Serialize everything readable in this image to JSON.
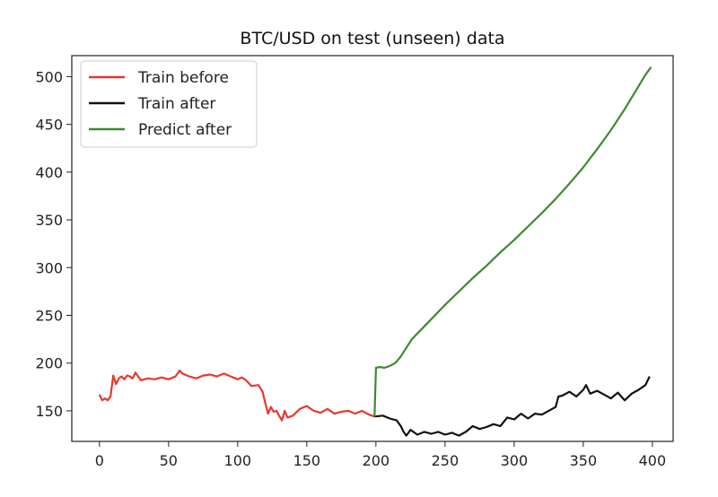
{
  "chart_data": {
    "type": "line",
    "title": "BTC/USD on test (unseen) data",
    "xlabel": "",
    "ylabel": "",
    "xlim": [
      -20,
      415
    ],
    "ylim": [
      118,
      522
    ],
    "xticks": [
      0,
      50,
      100,
      150,
      200,
      250,
      300,
      350,
      400
    ],
    "yticks": [
      150,
      200,
      250,
      300,
      350,
      400,
      450,
      500
    ],
    "grid": false,
    "legend_position": "top-left",
    "series": [
      {
        "name": "Train before",
        "color": "#e8382d",
        "x": [
          0,
          2,
          4,
          6,
          8,
          10,
          12,
          14,
          16,
          18,
          20,
          22,
          24,
          26,
          28,
          30,
          35,
          40,
          45,
          50,
          55,
          58,
          60,
          65,
          70,
          75,
          80,
          85,
          90,
          95,
          100,
          103,
          106,
          110,
          115,
          118,
          120,
          122,
          124,
          126,
          128,
          130,
          132,
          134,
          136,
          140,
          145,
          150,
          155,
          160,
          165,
          170,
          175,
          180,
          185,
          190,
          195,
          199
        ],
        "y": [
          167,
          161,
          163,
          161,
          165,
          187,
          178,
          184,
          186,
          183,
          187,
          186,
          184,
          190,
          186,
          182,
          184,
          183,
          185,
          183,
          186,
          192,
          189,
          186,
          184,
          187,
          188,
          186,
          189,
          186,
          183,
          185,
          182,
          176,
          177,
          170,
          158,
          147,
          154,
          149,
          150,
          145,
          140,
          150,
          143,
          145,
          152,
          155,
          150,
          148,
          152,
          147,
          149,
          150,
          147,
          150,
          146,
          144
        ]
      },
      {
        "name": "Train after",
        "color": "#111111",
        "x": [
          199,
          205,
          210,
          215,
          218,
          220,
          222,
          225,
          230,
          235,
          240,
          245,
          250,
          255,
          260,
          265,
          270,
          275,
          280,
          285,
          290,
          295,
          300,
          305,
          310,
          315,
          320,
          325,
          330,
          332,
          335,
          340,
          345,
          350,
          352,
          355,
          360,
          365,
          370,
          375,
          380,
          385,
          390,
          395,
          398
        ],
        "y": [
          144,
          145,
          142,
          140,
          134,
          128,
          124,
          130,
          125,
          128,
          126,
          128,
          125,
          127,
          124,
          128,
          134,
          131,
          133,
          136,
          134,
          143,
          141,
          147,
          142,
          147,
          146,
          150,
          154,
          165,
          166,
          170,
          165,
          172,
          177,
          168,
          171,
          167,
          163,
          169,
          161,
          168,
          172,
          177,
          186
        ]
      },
      {
        "name": "Predict after",
        "color": "#3d8b2f",
        "x": [
          199,
          200,
          203,
          206,
          210,
          214,
          218,
          222,
          226,
          230,
          240,
          250,
          260,
          270,
          280,
          290,
          300,
          310,
          320,
          330,
          340,
          350,
          360,
          370,
          380,
          390,
          395,
          399
        ],
        "y": [
          144,
          195,
          196,
          195,
          197,
          200,
          207,
          216,
          225,
          231,
          246,
          261,
          275,
          289,
          302,
          316,
          329,
          343,
          357,
          372,
          388,
          405,
          424,
          444,
          466,
          490,
          502,
          510
        ]
      }
    ]
  }
}
